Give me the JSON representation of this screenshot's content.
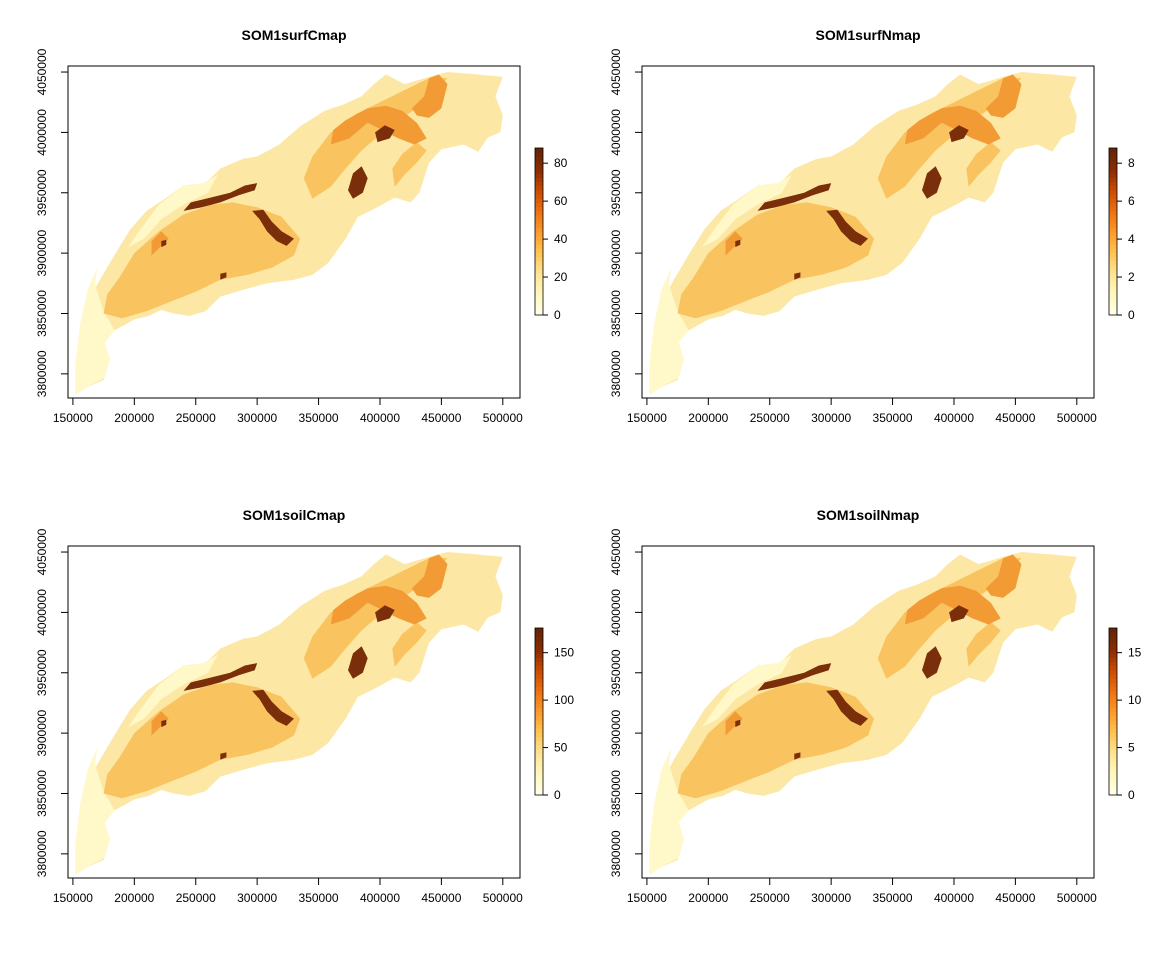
{
  "figure": {
    "panels": [
      {
        "title": "SOM1surfCmap",
        "legend_ticks": [
          "0",
          "20",
          "40",
          "60",
          "80"
        ],
        "legend_max": 88
      },
      {
        "title": "SOM1surfNmap",
        "legend_ticks": [
          "0",
          "2",
          "4",
          "6",
          "8"
        ],
        "legend_max": 8.8
      },
      {
        "title": "SOM1soilCmap",
        "legend_ticks": [
          "0",
          "50",
          "100",
          "150"
        ],
        "legend_max": 176
      },
      {
        "title": "SOM1soilNmap",
        "legend_ticks": [
          "0",
          "5",
          "10",
          "15"
        ],
        "legend_max": 17.6
      }
    ],
    "x_ticks": [
      "150000",
      "200000",
      "250000",
      "300000",
      "350000",
      "400000",
      "450000",
      "500000"
    ],
    "y_ticks": [
      "3800000",
      "3850000",
      "3900000",
      "3950000",
      "4000000",
      "4050000"
    ],
    "x_range": [
      146000,
      514000
    ],
    "y_range": [
      3780000,
      4055000
    ],
    "color_ramp": [
      "#FFFFE5",
      "#FFF7BC",
      "#FEE391",
      "#FEC44F",
      "#FE9929",
      "#EC7014",
      "#CC4C02",
      "#8C2D04",
      "#662506"
    ],
    "map_colors": {
      "pale": "#FFF8C8",
      "light": "#FDE7A4",
      "medium": "#F9C35F",
      "orange": "#F29B35",
      "dark": "#7A2E09"
    }
  }
}
